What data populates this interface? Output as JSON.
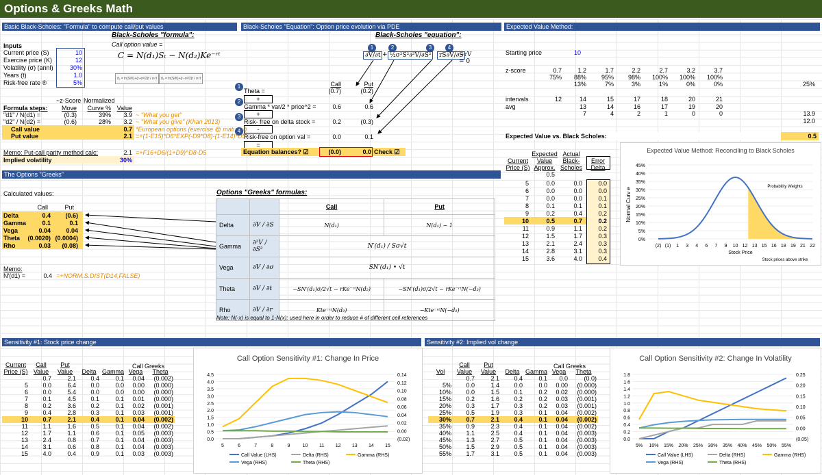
{
  "title": "Options & Greeks Math",
  "sections": {
    "bs_formula": "Basic Black-Scholes: \"Formula\" to compute call/put values",
    "bs_equation": "Black-Scholes \"Equation\": Option price evolution via PDE",
    "ev_method": "Expected Value Method:",
    "greeks": "The Options \"Greeks\"",
    "sens1": "Sensitivity #1: Stock price change",
    "sens2": "Sensitivity #2: Implied vol change"
  },
  "inputs": {
    "header": "Inputs",
    "rows": [
      {
        "label": "Current price (S)",
        "value": "10"
      },
      {
        "label": "Exercise price (K)",
        "value": "12"
      },
      {
        "label": "Volatility (σ) (annl)",
        "value": "30%"
      },
      {
        "label": "Years (t)",
        "value": "1.0"
      },
      {
        "label": "Risk-free rate ®",
        "value": "5%"
      }
    ]
  },
  "formula": {
    "title": "Black-Scholes \"formula\":",
    "call_label": "Call option value =",
    "equation": "C = N(d₁)Sₜ − N(d₂)Ke⁻ʳᵗ"
  },
  "steps": {
    "zscore": "~z-Score",
    "normalized": "Normalized",
    "header": "Formula steps:",
    "cols": [
      "Move",
      "Curve %",
      "Value"
    ],
    "rows": [
      {
        "label": "\"d1\" / N(d1) =",
        "move": "(0.3)",
        "curve": "39%",
        "value": "3.9",
        "note": "~ \"What you get\""
      },
      {
        "label": "\"d2\" / N(d2) =",
        "move": "(0.6)",
        "curve": "28%",
        "value": "3.2",
        "note": "~ \"What you give\" (Khan 2013)"
      }
    ],
    "call_label": "Call value",
    "call_value": "0.7",
    "call_note": "*European options (exercise @ maturity)",
    "put_label": "Put value",
    "put_value": "2.1",
    "put_note": "=+(1-E15)*D6*EXP(-D9*D8)-(1-E14)*D5",
    "memo_label": "Memo: Put-call parity method calc:",
    "memo_value": "2.1",
    "memo_note": "=+F16+D6/(1+D9)^D8-D5",
    "iv_label": "Implied volatility",
    "iv_value": "30%"
  },
  "equation": {
    "title": "Black-Scholes \"equation\":",
    "col_call": "Call",
    "col_put": "Put",
    "col_call_v": "(0.7)",
    "col_put_v": "(0.2)",
    "theta": "Theta =",
    "plus": "+",
    "gamma": "Gamma * var/2 * price^2 =",
    "gamma_call": "0.6",
    "gamma_put": "0.6",
    "rf_delta": "Risk- free on delta stock =",
    "rf_call": "0.2",
    "rf_put": "(0.3)",
    "minus": "-",
    "rf_opt": "Risk-free on option val =",
    "rfo_call": "0.0",
    "rfo_put": "0.1",
    "equals": "=",
    "balance": "Equation balances? ☑",
    "bal_call": "(0.0)",
    "bal_put": "0.0",
    "check": "Check ☑"
  },
  "ev": {
    "starting_price_label": "Starting price",
    "starting_price": "10",
    "zscore_label": "z-score",
    "zrow1": [
      "0.7",
      "1.2",
      "1.7",
      "2.2",
      "2.7",
      "3.2",
      "3.7"
    ],
    "zrow2": [
      "75%",
      "88%",
      "95%",
      "98%",
      "100%",
      "100%",
      "100%"
    ],
    "zrow3": [
      "",
      "13%",
      "7%",
      "3%",
      "1%",
      "0%",
      "0%"
    ],
    "zextra": "25%",
    "intervals_label": "intervals",
    "intervals": [
      "12",
      "14",
      "15",
      "17",
      "18",
      "20",
      "21"
    ],
    "avg_label": "avg",
    "avg": [
      "13",
      "14",
      "16",
      "17",
      "19",
      "20"
    ],
    "avg2": [
      "7",
      "4",
      "2",
      "1",
      "0",
      "0"
    ],
    "side1": "13.9",
    "side2": "12.0",
    "vs_label": "Expected Value vs. Black Scholes:",
    "vs_value": "0.5",
    "table_headers": [
      "Current Price (S)",
      "Expected Value Approx.",
      "Actual Black-Scholes",
      "Error Delta"
    ],
    "approx_top": "0.5",
    "rows": [
      [
        "5",
        "0.0",
        "0.0",
        "0.0"
      ],
      [
        "6",
        "0.0",
        "0.0",
        "0.0"
      ],
      [
        "7",
        "0.0",
        "0.0",
        "0.1"
      ],
      [
        "8",
        "0.1",
        "0.1",
        "0.1"
      ],
      [
        "9",
        "0.2",
        "0.4",
        "0.2"
      ],
      [
        "10",
        "0.5",
        "0.7",
        "0.2"
      ],
      [
        "11",
        "0.9",
        "1.1",
        "0.2"
      ],
      [
        "12",
        "1.5",
        "1.7",
        "0.3"
      ],
      [
        "13",
        "2.1",
        "2.4",
        "0.3"
      ],
      [
        "14",
        "2.8",
        "3.1",
        "0.3"
      ],
      [
        "15",
        "3.6",
        "4.0",
        "0.4"
      ]
    ]
  },
  "ev_chart": {
    "title": "Expected Value Method: Reconciling to Black Scholes",
    "ylabel": "Normal Curv e",
    "xlabel": "Stock Price",
    "legend": "Probability Weights",
    "note": "Stock prices above strike",
    "yticks": [
      "45%",
      "40%",
      "35%",
      "30%",
      "25%",
      "20%",
      "15%",
      "10%",
      "5%",
      "0%"
    ],
    "xticks": [
      "(2)",
      "(1)",
      "1",
      "3",
      "4",
      "6",
      "7",
      "9",
      "10",
      "12",
      "13",
      "15",
      "16",
      "18",
      "19",
      "21",
      "22"
    ]
  },
  "greeks": {
    "calc_label": "Calculated values:",
    "col_call": "Call",
    "col_put": "Put",
    "rows": [
      {
        "name": "Delta",
        "call": "0.4",
        "put": "(0.6)"
      },
      {
        "name": "Gamma",
        "call": "0.1",
        "put": "0.1"
      },
      {
        "name": "Vega",
        "call": "0.04",
        "put": "0.04"
      },
      {
        "name": "Theta",
        "call": "(0.0020)",
        "put": "(0.0004)"
      },
      {
        "name": "Rho",
        "call": "0.03",
        "put": "(0.08)"
      }
    ],
    "memo_label": "Memo:",
    "nd1_label": "N'(d1) =",
    "nd1_value": "0.4",
    "nd1_note": "=+NORM.S.DIST(D14,FALSE)",
    "formulas_title": "Options \"Greeks\" formulas:",
    "ft_call": "Call",
    "ft_put": "Put",
    "ft_rows": [
      {
        "name": "Delta",
        "deriv": "∂V / ∂S",
        "call": "N(d₁)",
        "put": "N(d₁) − 1"
      },
      {
        "name": "Gamma",
        "deriv": "∂²V / ∂S²",
        "call": "N′(d₁) / Sσ√t",
        "put": ""
      },
      {
        "name": "Vega",
        "deriv": "∂V / ∂σ",
        "call": "SN′(d₁) • √t",
        "put": ""
      },
      {
        "name": "Theta",
        "deriv": "∂V / ∂t",
        "call": "−SN′(d₁)σ/2√t − rKe⁻ʳᵗN(d₂)",
        "put": "−SN′(d₁)σ/2√t − rKe⁻ʳᵗN(−d₂)"
      },
      {
        "name": "Rho",
        "deriv": "∂V / ∂r",
        "call": "Kte⁻ʳᵗN(d₂)",
        "put": "−Kte⁻ʳᵗN(−d₂)"
      }
    ],
    "note": "Note: N(-x) is equal to 1-N(x); used here in order to reduce # of different cell references"
  },
  "sens1": {
    "headers": [
      "Current Price (S)",
      "Call Value",
      "Put Value",
      "Delta",
      "Gamma",
      "Vega",
      "Theta"
    ],
    "greeks_label": "Call Greeks",
    "top": [
      "0.7",
      "2.1",
      "0.4",
      "0.1",
      "0.04",
      "(0.002)"
    ],
    "rows": [
      [
        "5",
        "0.0",
        "6.4",
        "0.0",
        "0.0",
        "0.00",
        "(0.000)"
      ],
      [
        "6",
        "0.0",
        "5.4",
        "0.0",
        "0.0",
        "0.00",
        "(0.000)"
      ],
      [
        "7",
        "0.1",
        "4.5",
        "0.1",
        "0.1",
        "0.01",
        "(0.000)"
      ],
      [
        "8",
        "0.2",
        "3.6",
        "0.2",
        "0.1",
        "0.02",
        "(0.001)"
      ],
      [
        "9",
        "0.4",
        "2.8",
        "0.3",
        "0.1",
        "0.03",
        "(0.001)"
      ],
      [
        "10",
        "0.7",
        "2.1",
        "0.4",
        "0.1",
        "0.04",
        "(0.002)"
      ],
      [
        "11",
        "1.1",
        "1.6",
        "0.5",
        "0.1",
        "0.04",
        "(0.002)"
      ],
      [
        "12",
        "1.7",
        "1.1",
        "0.6",
        "0.1",
        "0.05",
        "(0.003)"
      ],
      [
        "13",
        "2.4",
        "0.8",
        "0.7",
        "0.1",
        "0.04",
        "(0.003)"
      ],
      [
        "14",
        "3.1",
        "0.6",
        "0.8",
        "0.1",
        "0.04",
        "(0.003)"
      ],
      [
        "15",
        "4.0",
        "0.4",
        "0.9",
        "0.1",
        "0.03",
        "(0.003)"
      ]
    ]
  },
  "sens2": {
    "headers": [
      "Vol",
      "Call Value",
      "Put Value",
      "Delta",
      "Gamma",
      "Vega",
      "Theta"
    ],
    "greeks_label": "Call Greeks",
    "top": [
      "0.7",
      "2.1",
      "0.4",
      "0.1",
      "0.0",
      "(0.0)"
    ],
    "rows": [
      [
        "5%",
        "0.0",
        "1.4",
        "0.0",
        "0.0",
        "0.00",
        "(0.000)"
      ],
      [
        "10%",
        "0.0",
        "1.5",
        "0.1",
        "0.2",
        "0.02",
        "(0.000)"
      ],
      [
        "15%",
        "0.2",
        "1.6",
        "0.2",
        "0.2",
        "0.03",
        "(0.001)"
      ],
      [
        "20%",
        "0.3",
        "1.7",
        "0.3",
        "0.2",
        "0.03",
        "(0.001)"
      ],
      [
        "25%",
        "0.5",
        "1.9",
        "0.3",
        "0.1",
        "0.04",
        "(0.002)"
      ],
      [
        "30%",
        "0.7",
        "2.1",
        "0.4",
        "0.1",
        "0.04",
        "(0.002)"
      ],
      [
        "35%",
        "0.9",
        "2.3",
        "0.4",
        "0.1",
        "0.04",
        "(0.002)"
      ],
      [
        "40%",
        "1.1",
        "2.5",
        "0.4",
        "0.1",
        "0.04",
        "(0.003)"
      ],
      [
        "45%",
        "1.3",
        "2.7",
        "0.5",
        "0.1",
        "0.04",
        "(0.003)"
      ],
      [
        "50%",
        "1.5",
        "2.9",
        "0.5",
        "0.1",
        "0.04",
        "(0.003)"
      ],
      [
        "55%",
        "1.7",
        "3.1",
        "0.5",
        "0.1",
        "0.04",
        "(0.003)"
      ]
    ]
  },
  "chart_data": [
    {
      "type": "line",
      "title": "Call Option Sensitivity #1: Change In Price",
      "x": [
        5,
        6,
        7,
        8,
        9,
        10,
        11,
        12,
        13,
        14,
        15
      ],
      "ylim_left": [
        0,
        4.5
      ],
      "ylim_right": [
        -0.02,
        0.14
      ],
      "left_ticks": [
        "4.5",
        "4.0",
        "3.5",
        "3.0",
        "2.5",
        "2.0",
        "1.5",
        "1.0",
        "0.5",
        "0.0"
      ],
      "right_ticks": [
        "0.14",
        "0.12",
        "0.10",
        "0.08",
        "0.06",
        "0.04",
        "0.02",
        "0.00",
        "(0.02)"
      ],
      "series": [
        {
          "name": "Call Value (LHS)",
          "axis": "left",
          "color": "#4472c4",
          "values": [
            0.0,
            0.0,
            0.1,
            0.2,
            0.4,
            0.7,
            1.1,
            1.7,
            2.4,
            3.1,
            4.0
          ]
        },
        {
          "name": "Delta (RHS)",
          "axis": "left",
          "color": "#a5a5a5",
          "values": [
            0.0,
            0.0,
            0.1,
            0.2,
            0.3,
            0.4,
            0.5,
            0.6,
            0.7,
            0.8,
            0.9
          ]
        },
        {
          "name": "Gamma (RHS)",
          "axis": "right",
          "color": "#ffc000",
          "values": [
            0.01,
            0.03,
            0.07,
            0.11,
            0.13,
            0.13,
            0.125,
            0.115,
            0.1,
            0.085,
            0.07
          ]
        },
        {
          "name": "Vega (RHS)",
          "axis": "right",
          "color": "#5b9bd5",
          "values": [
            0.0,
            0.002,
            0.01,
            0.02,
            0.03,
            0.04,
            0.045,
            0.047,
            0.045,
            0.04,
            0.035
          ]
        },
        {
          "name": "Theta (RHS)",
          "axis": "right",
          "color": "#70ad47",
          "values": [
            0.0,
            0.0,
            0.0,
            -0.001,
            -0.001,
            -0.002,
            -0.002,
            -0.003,
            -0.003,
            -0.003,
            -0.003
          ]
        }
      ]
    },
    {
      "type": "line",
      "title": "Call Option Sensitivity #2: Change In Volatility",
      "x": [
        "5%",
        "10%",
        "15%",
        "20%",
        "25%",
        "30%",
        "35%",
        "40%",
        "45%",
        "50%",
        "55%"
      ],
      "ylim_left": [
        0,
        1.8
      ],
      "ylim_right": [
        -0.05,
        0.25
      ],
      "left_ticks": [
        "1.8",
        "1.6",
        "1.4",
        "1.2",
        "1.0",
        "0.8",
        "0.6",
        "0.4",
        "0.2",
        "0.0"
      ],
      "right_ticks": [
        "0.25",
        "0.20",
        "0.15",
        "0.10",
        "0.05",
        "0.00",
        "(0.05)"
      ],
      "series": [
        {
          "name": "Call Value (LHS)",
          "axis": "left",
          "color": "#4472c4",
          "values": [
            0.0,
            0.0,
            0.2,
            0.3,
            0.5,
            0.7,
            0.9,
            1.1,
            1.3,
            1.5,
            1.7
          ]
        },
        {
          "name": "Delta (RHS)",
          "axis": "left",
          "color": "#a5a5a5",
          "values": [
            0.0,
            0.1,
            0.2,
            0.3,
            0.3,
            0.4,
            0.4,
            0.4,
            0.5,
            0.5,
            0.5
          ]
        },
        {
          "name": "Gamma (RHS)",
          "axis": "right",
          "color": "#ffc000",
          "values": [
            0.04,
            0.16,
            0.17,
            0.15,
            0.13,
            0.12,
            0.11,
            0.1,
            0.09,
            0.085,
            0.08
          ]
        },
        {
          "name": "Vega (RHS)",
          "axis": "right",
          "color": "#5b9bd5",
          "values": [
            0.0,
            0.015,
            0.025,
            0.031,
            0.035,
            0.038,
            0.039,
            0.04,
            0.04,
            0.04,
            0.04
          ]
        },
        {
          "name": "Theta (RHS)",
          "axis": "right",
          "color": "#70ad47",
          "values": [
            0.0,
            0.0,
            -0.001,
            -0.001,
            -0.002,
            -0.002,
            -0.002,
            -0.003,
            -0.003,
            -0.003,
            -0.003
          ]
        }
      ]
    }
  ]
}
